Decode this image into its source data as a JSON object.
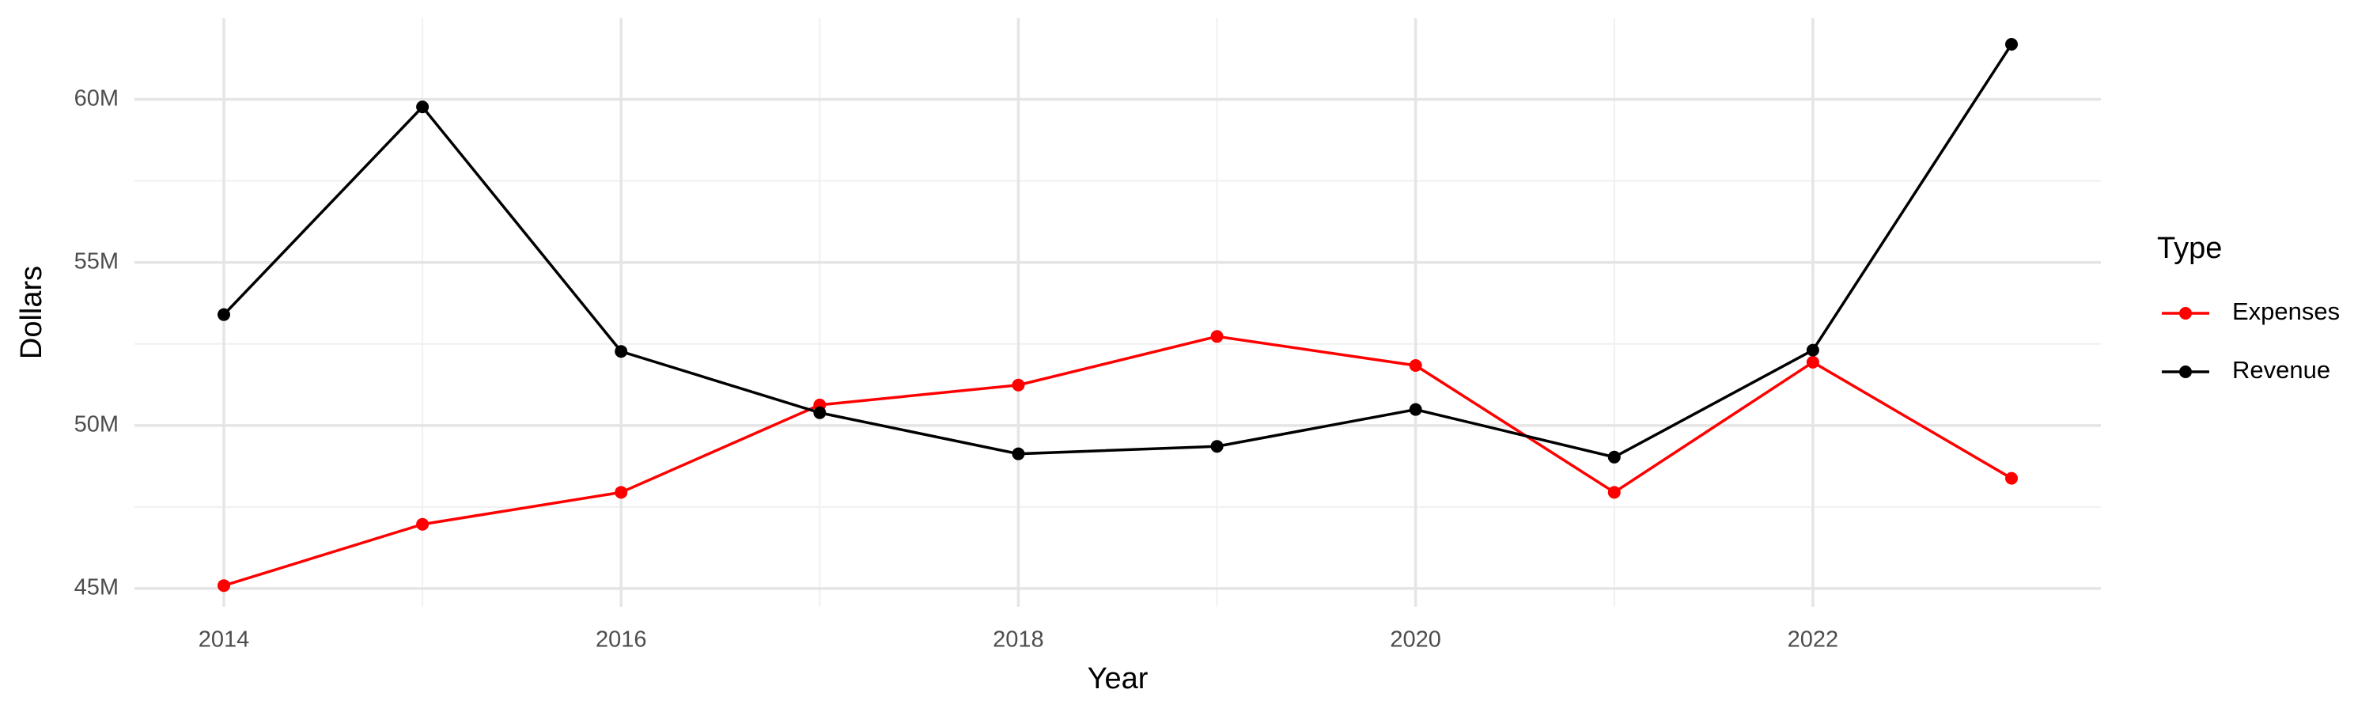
{
  "chart_data": {
    "type": "line",
    "x_label": "Year",
    "y_label": "Dollars",
    "legend_title": "Type",
    "legend": "right",
    "grid": true,
    "x": [
      2014,
      2015,
      2016,
      2017,
      2018,
      2019,
      2020,
      2021,
      2022,
      2023
    ],
    "series": [
      {
        "name": "Expenses",
        "color": "#ff0000",
        "values": [
          45090000,
          46970000,
          47950000,
          50630000,
          51240000,
          52730000,
          51840000,
          47950000,
          51940000,
          48380000
        ]
      },
      {
        "name": "Revenue",
        "color": "#000000",
        "values": [
          53400000,
          59770000,
          52270000,
          50390000,
          49130000,
          49360000,
          50490000,
          49030000,
          52310000,
          61690000
        ]
      }
    ],
    "xlim": [
      2013.55,
      2023.45
    ],
    "xticks": [
      2014,
      2016,
      2018,
      2020,
      2022
    ],
    "ylim": [
      44440000,
      62490000
    ],
    "yticks": [
      {
        "value": 45000000,
        "label": "45M"
      },
      {
        "value": 50000000,
        "label": "50M"
      },
      {
        "value": 55000000,
        "label": "55M"
      },
      {
        "value": 60000000,
        "label": "60M"
      }
    ]
  }
}
